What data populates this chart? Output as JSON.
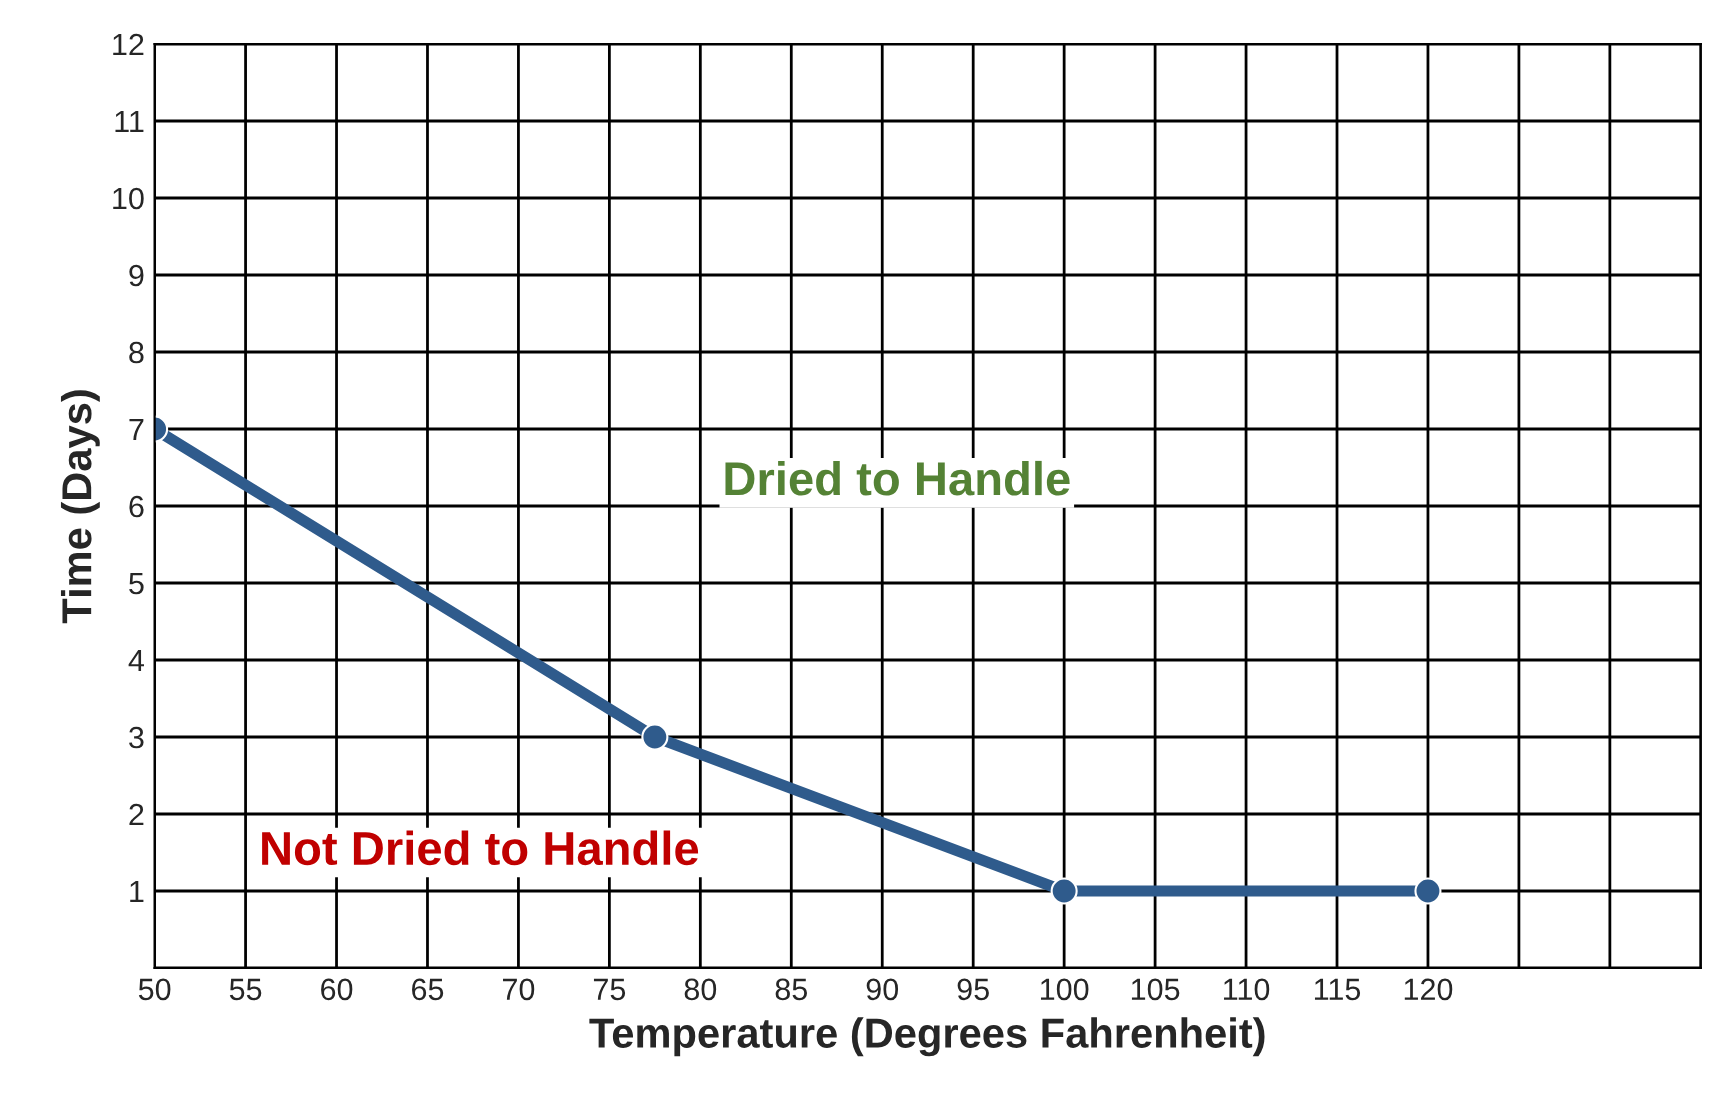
{
  "chart_data": {
    "type": "line",
    "xlabel": "Temperature (Degrees Fahrenheit)",
    "ylabel": "Time (Days)",
    "x": [
      50,
      77.5,
      100,
      120
    ],
    "series": [
      {
        "color": "#2f5b8c",
        "values": [
          7,
          3,
          1,
          1
        ]
      }
    ],
    "marker": "circle",
    "line_style": "solid",
    "grid": true,
    "xlim": [
      50,
      135
    ],
    "xticks": [
      50,
      55,
      60,
      65,
      70,
      75,
      80,
      85,
      90,
      95,
      100,
      105,
      110,
      115,
      120,
      {
        "value": 125,
        "label": null
      },
      {
        "value": 130,
        "label": null
      },
      {
        "value": 135,
        "label": null
      }
    ],
    "ylim": [
      0,
      12
    ],
    "yticks": [
      {
        "value": 0,
        "label": null
      },
      1,
      2,
      3,
      4,
      5,
      6,
      7,
      8,
      9,
      10,
      11,
      12
    ],
    "annotations": [
      "Dried to Handle",
      "Not Dried to Handle"
    ]
  }
}
